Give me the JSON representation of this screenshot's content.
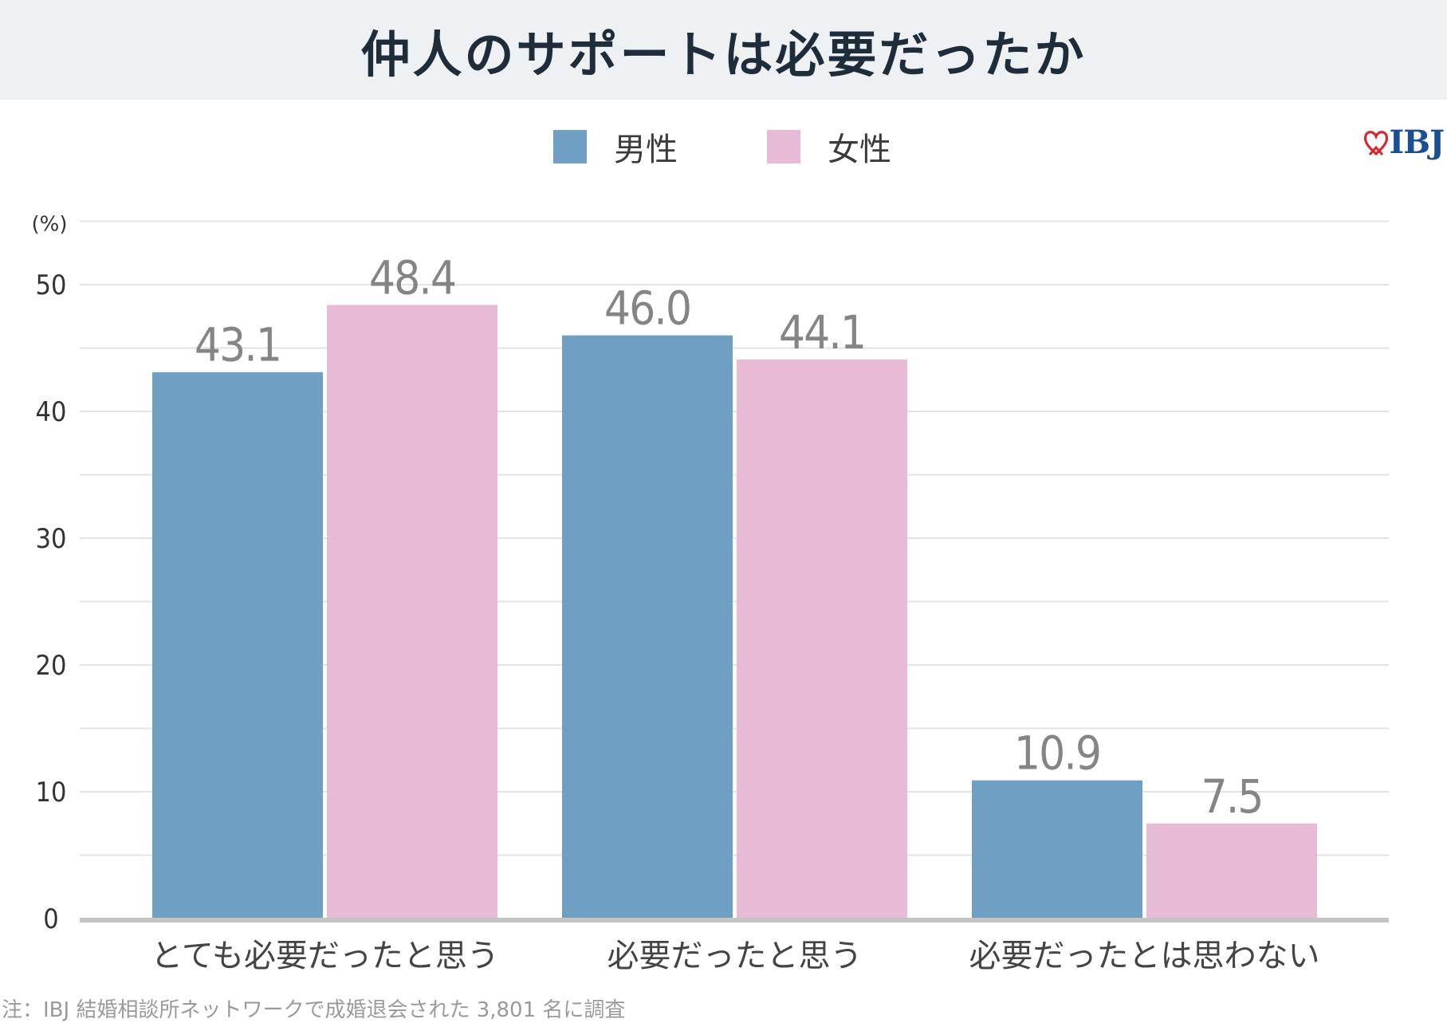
{
  "title": "仲人のサポートは必要だったか",
  "logo_text": "IBJ",
  "footnote": "注：IBJ 結婚相談所ネットワークで成婚退会された 3,801 名に調査",
  "colors": {
    "male": "#6fa0c4",
    "female": "#e7bad6",
    "title_bg": "#edf1f4",
    "grid": "#dfe4e8",
    "axis": "#c4c4c4"
  },
  "chart_data": {
    "type": "bar",
    "title": "仲人のサポートは必要だったか",
    "unit_label": "(%)",
    "categories": [
      "とても必要だったと思う",
      "必要だったと思う",
      "必要だったとは思わない"
    ],
    "series": [
      {
        "name": "男性",
        "values": [
          43.1,
          46.0,
          10.9
        ]
      },
      {
        "name": "女性",
        "values": [
          48.4,
          44.1,
          7.5
        ]
      }
    ],
    "value_labels": [
      [
        "43.1",
        "46.0",
        "10.9"
      ],
      [
        "48.4",
        "44.1",
        "7.5"
      ]
    ],
    "ylim": [
      0,
      55
    ],
    "yticks": [
      0,
      10,
      20,
      30,
      40,
      50
    ],
    "ytick_labels": [
      "0",
      "10",
      "20",
      "30",
      "40",
      "50"
    ],
    "grid": true,
    "legend_position": "top-center"
  }
}
